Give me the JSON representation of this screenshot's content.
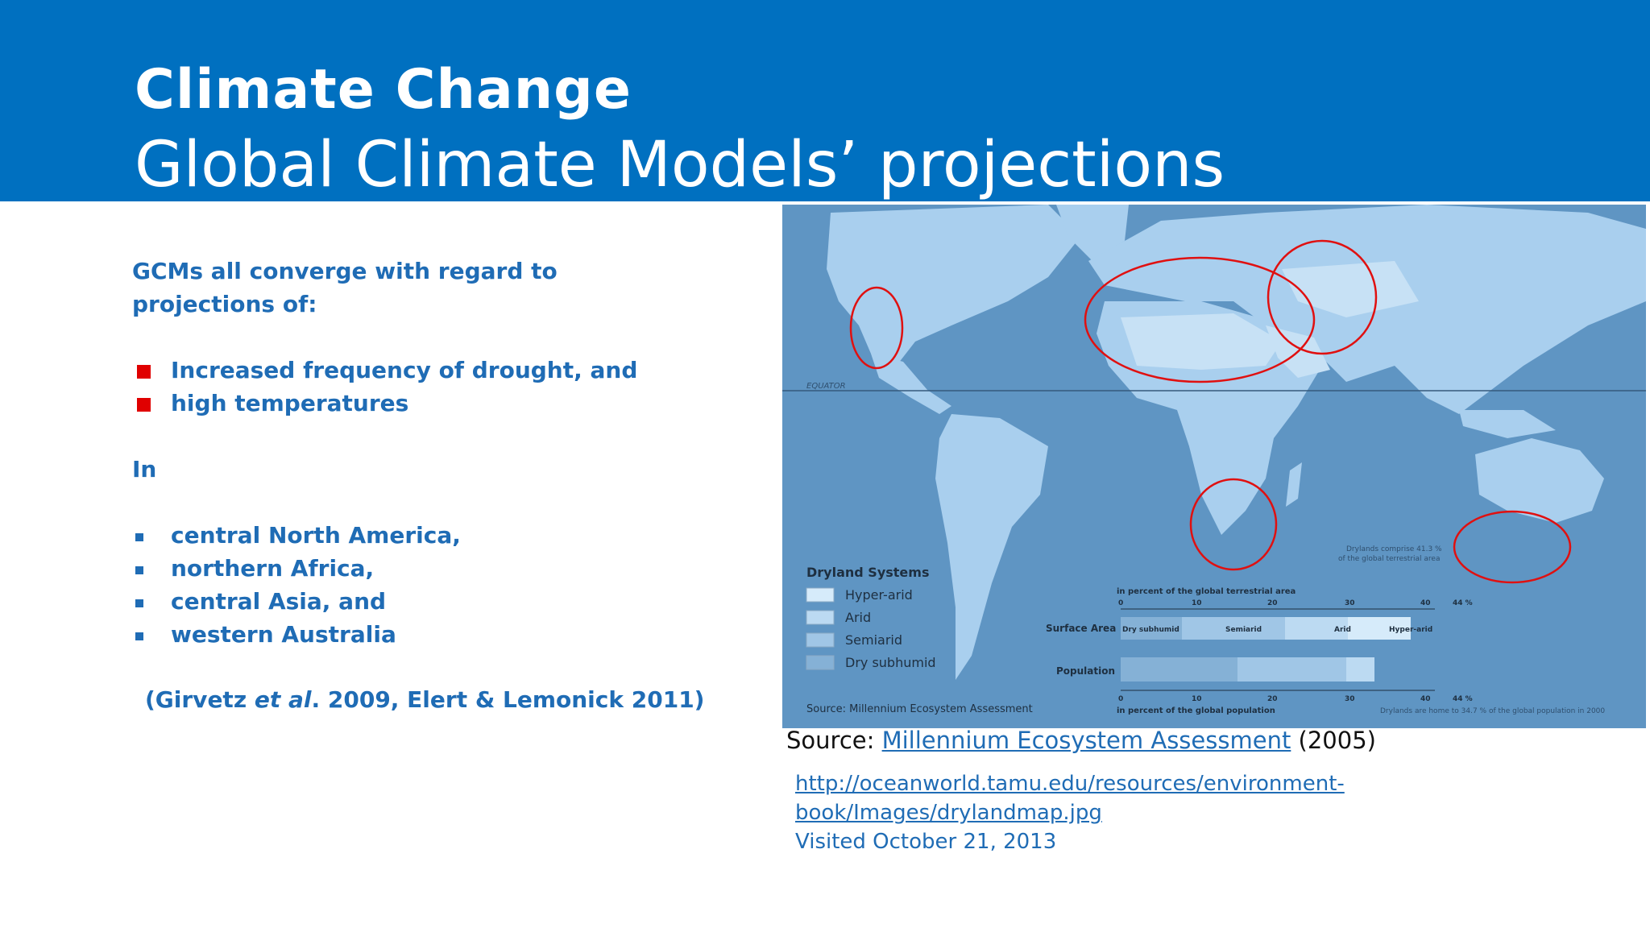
{
  "header": {
    "title": "Climate Change",
    "subtitle": "Global Climate Models’ projections"
  },
  "left": {
    "intro_line1": "GCMs all converge with regard to",
    "intro_line2": "projections of:",
    "projections": [
      "Increased frequency of drought, and",
      "high temperatures"
    ],
    "in_label": "In",
    "regions": [
      "central North America,",
      "northern Africa,",
      "central Asia, and",
      "western Australia"
    ],
    "citation_prefix": "(Girvetz ",
    "citation_italic": "et al",
    "citation_suffix": ". 2009, Elert & Lemonick 2011)"
  },
  "map": {
    "equator_label": "EQUATOR",
    "legend_title": "Dryland Systems",
    "legend_items": [
      "Hyper-arid",
      "Arid",
      "Semiarid",
      "Dry subhumid"
    ],
    "map_source": "Source: Millennium Ecosystem Assessment",
    "terrestrial_label": "in percent of the global terrestrial area",
    "population_axis_label": "in percent of the global population",
    "surface_area_label": "Surface Area",
    "population_label": "Population",
    "ticks": [
      "0",
      "10",
      "20",
      "30",
      "40",
      "44 %"
    ],
    "surface_segments": [
      "Dry subhumid",
      "Semiarid",
      "Arid",
      "Hyper-arid"
    ],
    "note_top": "Drylands comprise 41.3 %",
    "note_top2": "of the global terrestrial area",
    "note_bottom": "Drylands are home to 34.7 % of the global population in 2000"
  },
  "source": {
    "prefix": "Source: ",
    "link_text": "Millennium Ecosystem Assessment",
    "suffix": " (2005)",
    "url_line1": "http://oceanworld.tamu.edu/resources/environment-",
    "url_line2": "book/Images/drylandmap.jpg",
    "visited": "Visited October 21, 2013"
  },
  "colors": {
    "header_bg": "#0070c0",
    "body_text": "#1f6cb5",
    "red_bullet": "#e00000",
    "map_ocean": "#5f95c3",
    "map_land": "#a9cfee",
    "circle": "#e01010"
  }
}
